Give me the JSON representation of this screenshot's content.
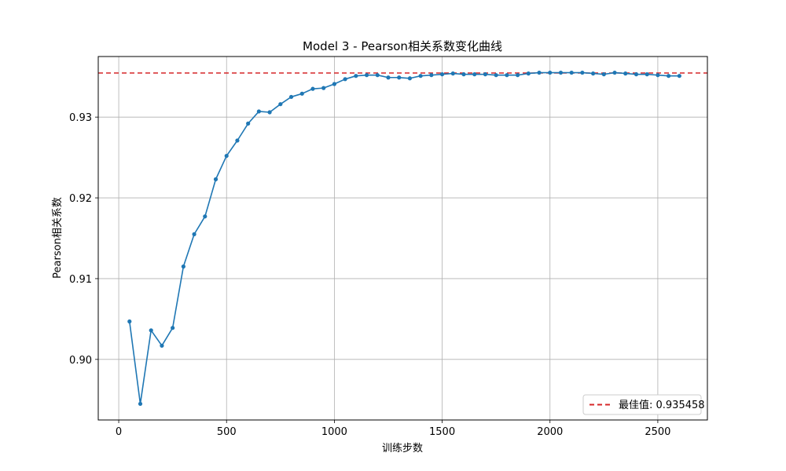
{
  "chart_data": {
    "type": "line",
    "title": "Model 3 - Pearson相关系数变化曲线",
    "xlabel": "训练步数",
    "ylabel": "Pearson相关系数",
    "xlim": [
      -95,
      2730
    ],
    "ylim": [
      0.8925,
      0.9375
    ],
    "xticks": [
      0,
      500,
      1000,
      1500,
      2000,
      2500
    ],
    "yticks": [
      0.9,
      0.91,
      0.92,
      0.93
    ],
    "xtick_labels": [
      "0",
      "500",
      "1000",
      "1500",
      "2000",
      "2500"
    ],
    "ytick_labels": [
      "0.90",
      "0.91",
      "0.92",
      "0.93"
    ],
    "grid": true,
    "legend_position": "lower-right",
    "series": [
      {
        "color": "#1f77b4",
        "x": [
          50,
          100,
          150,
          200,
          250,
          300,
          350,
          400,
          450,
          500,
          550,
          600,
          650,
          700,
          750,
          800,
          850,
          900,
          950,
          1000,
          1050,
          1100,
          1150,
          1200,
          1250,
          1300,
          1350,
          1400,
          1450,
          1500,
          1550,
          1600,
          1650,
          1700,
          1750,
          1800,
          1850,
          1900,
          1950,
          2000,
          2050,
          2100,
          2150,
          2200,
          2250,
          2300,
          2350,
          2400,
          2450,
          2500,
          2550,
          2600
        ],
        "y": [
          0.9047,
          0.8945,
          0.9036,
          0.9017,
          0.9039,
          0.9115,
          0.9155,
          0.9177,
          0.9223,
          0.9252,
          0.9271,
          0.9292,
          0.9307,
          0.9306,
          0.9316,
          0.9325,
          0.9329,
          0.9335,
          0.9336,
          0.9341,
          0.9347,
          0.9351,
          0.9352,
          0.9352,
          0.9349,
          0.9349,
          0.9348,
          0.9351,
          0.9352,
          0.9353,
          0.9354,
          0.9353,
          0.9353,
          0.9353,
          0.9352,
          0.9352,
          0.9352,
          0.9354,
          0.9355,
          0.9355,
          0.9355,
          0.9355,
          0.9355,
          0.9354,
          0.9353,
          0.9355,
          0.9354,
          0.9353,
          0.9353,
          0.9352,
          0.9351,
          0.9351
        ]
      }
    ],
    "reference_line": {
      "value": 0.935458,
      "color": "#d62728",
      "label": "最佳值: 0.935458"
    }
  }
}
